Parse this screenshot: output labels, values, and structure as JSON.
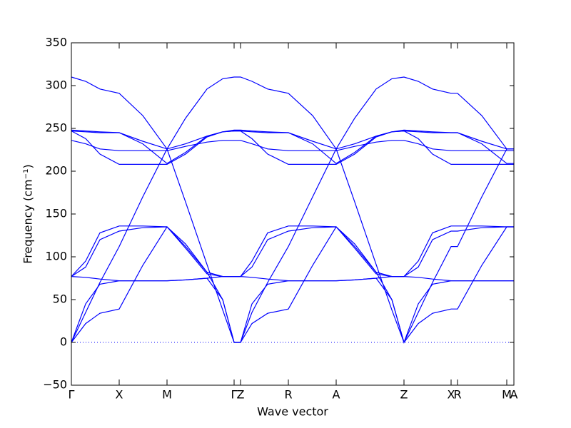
{
  "chart_data": {
    "type": "line",
    "xlabel": "Wave vector",
    "ylabel": "Frequency (cm⁻¹)",
    "color": "#0000ff",
    "x": [
      0,
      20,
      40,
      67,
      100,
      134,
      160,
      190,
      212,
      228,
      237,
      253,
      275,
      304,
      338,
      371,
      397,
      427,
      449,
      466,
      486,
      506,
      532,
      541,
      575,
      610,
      620
    ],
    "series": [
      {
        "values": [
          0,
          22,
          34,
          39,
          90,
          135,
          115,
          82,
          50,
          0,
          0,
          22,
          34,
          39,
          90,
          135,
          115,
          82,
          50,
          0,
          22,
          34,
          39,
          39,
          90,
          135,
          135
        ]
      },
      {
        "values": [
          0,
          45,
          68,
          72,
          72,
          72,
          73,
          75,
          50,
          0,
          0,
          45,
          68,
          72,
          72,
          72,
          73,
          75,
          50,
          0,
          45,
          68,
          72,
          72,
          72,
          72,
          72
        ]
      },
      {
        "values": [
          0,
          35,
          70,
          112,
          170,
          226,
          164,
          91,
          38,
          0,
          0,
          35,
          70,
          112,
          170,
          226,
          164,
          91,
          38,
          0,
          35,
          70,
          112,
          112,
          170,
          226,
          226
        ]
      },
      {
        "values": [
          77,
          76,
          74,
          72,
          72,
          72,
          73,
          75,
          77,
          77,
          77,
          76,
          74,
          72,
          72,
          72,
          73,
          75,
          77,
          77,
          76,
          74,
          72,
          72,
          72,
          72,
          72
        ]
      },
      {
        "values": [
          77,
          88,
          120,
          130,
          134,
          135,
          112,
          82,
          77,
          77,
          77,
          88,
          120,
          130,
          134,
          135,
          112,
          82,
          77,
          77,
          88,
          120,
          130,
          130,
          134,
          135,
          135
        ]
      },
      {
        "values": [
          77,
          95,
          128,
          136,
          136,
          135,
          110,
          80,
          77,
          77,
          77,
          95,
          128,
          136,
          136,
          135,
          110,
          80,
          77,
          77,
          95,
          128,
          136,
          136,
          136,
          135,
          135
        ]
      },
      {
        "values": [
          236,
          232,
          226,
          224,
          224,
          224,
          229,
          234,
          236,
          236,
          236,
          232,
          226,
          224,
          224,
          224,
          229,
          234,
          236,
          236,
          232,
          226,
          224,
          224,
          224,
          224,
          224
        ]
      },
      {
        "values": [
          247,
          238,
          220,
          208,
          208,
          208,
          220,
          240,
          246,
          247,
          247,
          238,
          220,
          208,
          208,
          208,
          220,
          240,
          246,
          247,
          238,
          220,
          208,
          208,
          208,
          208,
          208
        ]
      },
      {
        "values": [
          247,
          246,
          245,
          245,
          232,
          209,
          222,
          241,
          246,
          247,
          247,
          246,
          245,
          245,
          232,
          209,
          222,
          241,
          246,
          247,
          246,
          245,
          245,
          245,
          232,
          209,
          209
        ]
      },
      {
        "values": [
          248,
          247,
          246,
          245,
          235,
          226,
          232,
          241,
          246,
          248,
          248,
          247,
          246,
          245,
          235,
          226,
          232,
          241,
          246,
          248,
          247,
          246,
          245,
          245,
          235,
          226,
          226
        ]
      },
      {
        "values": [
          310,
          305,
          296,
          291,
          265,
          226,
          262,
          296,
          308,
          310,
          310,
          305,
          296,
          291,
          265,
          226,
          262,
          296,
          308,
          310,
          305,
          296,
          291,
          291,
          265,
          226,
          226
        ]
      }
    ],
    "xlim": [
      0,
      620
    ],
    "xticks": [
      {
        "value": 0,
        "label": "Γ"
      },
      {
        "value": 67,
        "label": "X"
      },
      {
        "value": 134,
        "label": "M"
      },
      {
        "value": 228,
        "label": "Γ"
      },
      {
        "value": 237,
        "label": "Z"
      },
      {
        "value": 304,
        "label": "R"
      },
      {
        "value": 371,
        "label": "A"
      },
      {
        "value": 466,
        "label": "Z"
      },
      {
        "value": 532,
        "label": "X"
      },
      {
        "value": 541,
        "label": "R"
      },
      {
        "value": 610,
        "label": "M"
      },
      {
        "value": 620,
        "label": "A"
      }
    ],
    "ylim": [
      -50,
      350
    ],
    "yticks": [
      {
        "value": -50,
        "label": "−50"
      },
      0,
      50,
      100,
      150,
      200,
      250,
      300,
      350
    ],
    "hlines": [
      0
    ]
  }
}
